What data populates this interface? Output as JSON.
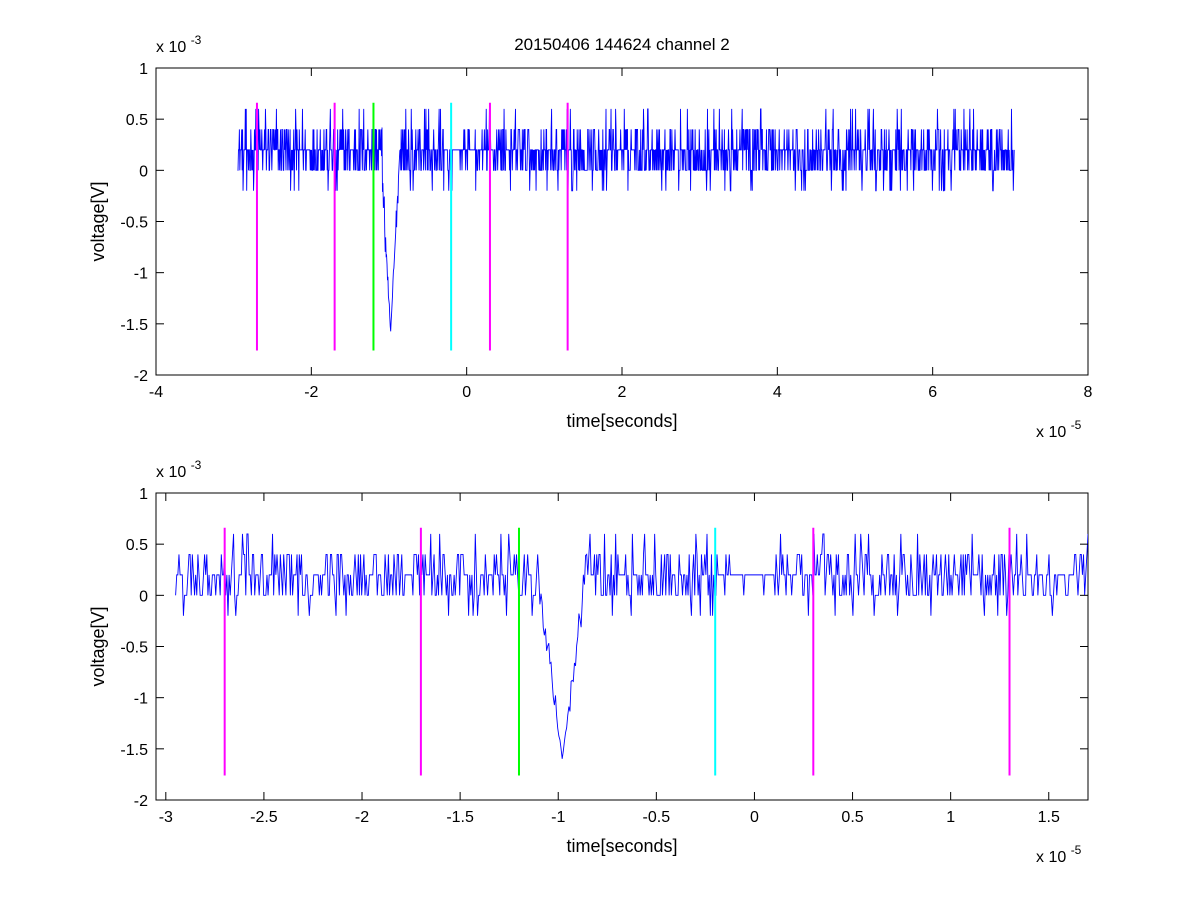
{
  "chart_data": [
    {
      "type": "line",
      "title": "20150406 144624 channel 2",
      "xlabel": "time[seconds]",
      "ylabel": "voltage[V]",
      "x_exponent_label": "x 10",
      "x_exponent": "-5",
      "y_exponent_label": "x 10",
      "y_exponent": "-3",
      "xlim": [
        -4,
        8
      ],
      "ylim": [
        -2,
        1
      ],
      "xticks": [
        -4,
        -2,
        0,
        2,
        4,
        6,
        8
      ],
      "xtick_labels": [
        "-4",
        "-2",
        "0",
        "2",
        "4",
        "6",
        "8"
      ],
      "yticks": [
        -2,
        -1.5,
        -1,
        -0.5,
        0,
        0.5,
        1
      ],
      "ytick_labels": [
        "-2",
        "-1.5",
        "-1",
        "-0.5",
        "0",
        "0.5",
        "1"
      ],
      "grid": false,
      "series": [
        {
          "color": "#0000ff",
          "x_start": -2.95,
          "x_end": 7.05,
          "noise_levels": [
            0,
            0.2,
            0.4
          ],
          "high_levels": [
            0.6
          ],
          "low_levels": [
            -0.2
          ],
          "spike": {
            "x": -0.98,
            "y": -1.6
          }
        }
      ],
      "vertical_markers": [
        {
          "x": -2.7,
          "color": "#ff00ff",
          "y_range": [
            -1.76,
            0.66
          ]
        },
        {
          "x": -1.7,
          "color": "#ff00ff",
          "y_range": [
            -1.76,
            0.66
          ]
        },
        {
          "x": -1.2,
          "color": "#00ff00",
          "y_range": [
            -1.76,
            0.66
          ]
        },
        {
          "x": -0.2,
          "color": "#00ffff",
          "y_range": [
            -1.76,
            0.66
          ]
        },
        {
          "x": 0.3,
          "color": "#ff00ff",
          "y_range": [
            -1.76,
            0.66
          ]
        },
        {
          "x": 1.3,
          "color": "#ff00ff",
          "y_range": [
            -1.76,
            0.66
          ]
        }
      ]
    },
    {
      "type": "line",
      "title": "",
      "xlabel": "time[seconds]",
      "ylabel": "voltage[V]",
      "x_exponent_label": "x 10",
      "x_exponent": "-5",
      "y_exponent_label": "x 10",
      "y_exponent": "-3",
      "xlim": [
        -3.05,
        1.7
      ],
      "ylim": [
        -2,
        1
      ],
      "xticks": [
        -3,
        -2.5,
        -2,
        -1.5,
        -1,
        -0.5,
        0,
        0.5,
        1,
        1.5
      ],
      "xtick_labels": [
        "-3",
        "-2.5",
        "-2",
        "-1.5",
        "-1",
        "-0.5",
        "0",
        "0.5",
        "1",
        "1.5"
      ],
      "yticks": [
        -2,
        -1.5,
        -1,
        -0.5,
        0,
        0.5,
        1
      ],
      "ytick_labels": [
        "-2",
        "-1.5",
        "-1",
        "-0.5",
        "0",
        "0.5",
        "1"
      ],
      "grid": false,
      "series": [
        {
          "color": "#0000ff",
          "x_start": -2.95,
          "x_end": 1.7,
          "noise_levels": [
            0,
            0.2,
            0.4
          ],
          "high_levels": [
            0.6
          ],
          "low_levels": [
            -0.2
          ],
          "spike": {
            "x": -0.98,
            "y": -1.6
          }
        }
      ],
      "vertical_markers": [
        {
          "x": -2.7,
          "color": "#ff00ff",
          "y_range": [
            -1.76,
            0.66
          ]
        },
        {
          "x": -1.7,
          "color": "#ff00ff",
          "y_range": [
            -1.76,
            0.66
          ]
        },
        {
          "x": -1.2,
          "color": "#00ff00",
          "y_range": [
            -1.76,
            0.66
          ]
        },
        {
          "x": -0.2,
          "color": "#00ffff",
          "y_range": [
            -1.76,
            0.66
          ]
        },
        {
          "x": 0.3,
          "color": "#ff00ff",
          "y_range": [
            -1.76,
            0.66
          ]
        },
        {
          "x": 1.3,
          "color": "#ff00ff",
          "y_range": [
            -1.76,
            0.66
          ]
        }
      ]
    }
  ]
}
